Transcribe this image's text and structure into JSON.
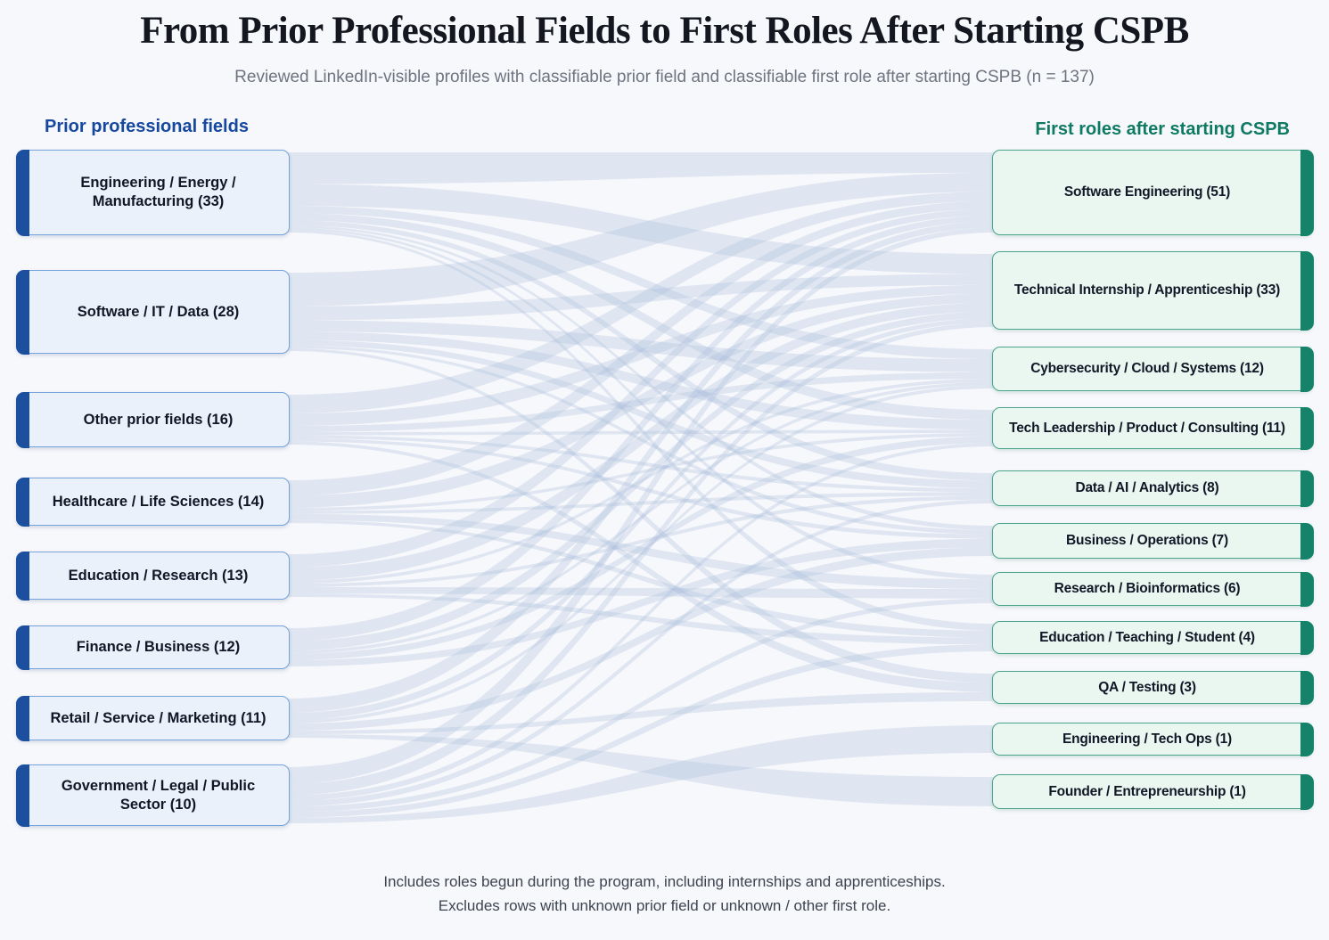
{
  "page": {
    "title": "From Prior Professional Fields to First Roles After Starting CSPB",
    "subtitle": "Reviewed LinkedIn-visible profiles with classifiable prior field and classifiable first role after starting CSPB (n = 137)"
  },
  "columns": {
    "left_header": "Prior professional fields",
    "right_header": "First roles after starting CSPB"
  },
  "footnote": {
    "line1": "Includes roles begun during the program, including internships and apprenticeships.",
    "line2": "Excludes rows with unknown prior field or unknown / other first role."
  },
  "chart_data": {
    "type": "sankey",
    "n_total": 137,
    "left_title": "Prior professional fields",
    "right_title": "First roles after starting CSPB",
    "colors": {
      "left_bar": "#1c4f9e",
      "left_fill": "#eaf1fb",
      "left_border": "#76a3da",
      "left_header_text": "#15489e",
      "right_bar": "#15836a",
      "right_fill": "#eaf6f0",
      "right_border": "#4aa58b",
      "right_header_text": "#0f7a63",
      "flow": "#a9bdda",
      "background": "#f7f8fb"
    },
    "left_nodes": [
      {
        "id": "engineering-energy-manufacturing",
        "label": "Engineering / Energy / Manufacturing",
        "value": 33,
        "display": "Engineering / Energy / Manufacturing (33)"
      },
      {
        "id": "software-it-data",
        "label": "Software / IT / Data",
        "value": 28,
        "display": "Software / IT / Data (28)"
      },
      {
        "id": "other-prior-fields",
        "label": "Other prior fields",
        "value": 16,
        "display": "Other prior fields (16)"
      },
      {
        "id": "healthcare-life-sciences",
        "label": "Healthcare / Life Sciences",
        "value": 14,
        "display": "Healthcare / Life Sciences (14)"
      },
      {
        "id": "education-research",
        "label": "Education / Research",
        "value": 13,
        "display": "Education / Research (13)"
      },
      {
        "id": "finance-business",
        "label": "Finance / Business",
        "value": 12,
        "display": "Finance / Business (12)"
      },
      {
        "id": "retail-service-marketing",
        "label": "Retail / Service / Marketing",
        "value": 11,
        "display": "Retail / Service / Marketing (11)"
      },
      {
        "id": "government-legal-public-sector",
        "label": "Government / Legal / Public Sector",
        "value": 10,
        "display": "Government / Legal / Public Sector (10)"
      }
    ],
    "right_nodes": [
      {
        "id": "software-engineering",
        "label": "Software Engineering",
        "value": 51,
        "display": "Software Engineering (51)"
      },
      {
        "id": "technical-internship-apprenticeship",
        "label": "Technical Internship / Apprenticeship",
        "value": 33,
        "display": "Technical Internship / Apprenticeship (33)"
      },
      {
        "id": "cybersecurity-cloud-systems",
        "label": "Cybersecurity / Cloud / Systems",
        "value": 12,
        "display": "Cybersecurity / Cloud / Systems (12)"
      },
      {
        "id": "tech-leadership-product-consulting",
        "label": "Tech Leadership / Product / Consulting",
        "value": 11,
        "display": "Tech Leadership / Product / Consulting (11)"
      },
      {
        "id": "data-ai-analytics",
        "label": "Data / AI / Analytics",
        "value": 8,
        "display": "Data / AI / Analytics (8)"
      },
      {
        "id": "business-operations",
        "label": "Business / Operations",
        "value": 7,
        "display": "Business / Operations (7)"
      },
      {
        "id": "research-bioinformatics",
        "label": "Research / Bioinformatics",
        "value": 6,
        "display": "Research / Bioinformatics (6)"
      },
      {
        "id": "education-teaching-student",
        "label": "Education / Teaching / Student",
        "value": 4,
        "display": "Education / Teaching / Student (4)"
      },
      {
        "id": "qa-testing",
        "label": "QA / Testing",
        "value": 3,
        "display": "QA / Testing (3)"
      },
      {
        "id": "engineering-tech-ops",
        "label": "Engineering / Tech Ops",
        "value": 1,
        "display": "Engineering / Tech Ops (1)"
      },
      {
        "id": "founder-entrepreneurship",
        "label": "Founder / Entrepreneurship",
        "value": 1,
        "display": "Founder / Entrepreneurship (1)"
      }
    ],
    "links": [
      {
        "s": 0,
        "t": 0,
        "v": 13
      },
      {
        "s": 0,
        "t": 1,
        "v": 9
      },
      {
        "s": 0,
        "t": 2,
        "v": 3
      },
      {
        "s": 0,
        "t": 3,
        "v": 3
      },
      {
        "s": 0,
        "t": 4,
        "v": 2
      },
      {
        "s": 0,
        "t": 5,
        "v": 1
      },
      {
        "s": 0,
        "t": 6,
        "v": 1
      },
      {
        "s": 0,
        "t": 7,
        "v": 1
      },
      {
        "s": 1,
        "t": 0,
        "v": 12
      },
      {
        "s": 1,
        "t": 1,
        "v": 5
      },
      {
        "s": 1,
        "t": 2,
        "v": 4
      },
      {
        "s": 1,
        "t": 3,
        "v": 3
      },
      {
        "s": 1,
        "t": 4,
        "v": 2
      },
      {
        "s": 1,
        "t": 5,
        "v": 1
      },
      {
        "s": 1,
        "t": 8,
        "v": 1
      },
      {
        "s": 2,
        "t": 0,
        "v": 6
      },
      {
        "s": 2,
        "t": 1,
        "v": 4
      },
      {
        "s": 2,
        "t": 2,
        "v": 2
      },
      {
        "s": 2,
        "t": 3,
        "v": 1
      },
      {
        "s": 2,
        "t": 4,
        "v": 1
      },
      {
        "s": 2,
        "t": 5,
        "v": 1
      },
      {
        "s": 2,
        "t": 8,
        "v": 1
      },
      {
        "s": 3,
        "t": 0,
        "v": 5
      },
      {
        "s": 3,
        "t": 1,
        "v": 4
      },
      {
        "s": 3,
        "t": 3,
        "v": 1
      },
      {
        "s": 3,
        "t": 4,
        "v": 1
      },
      {
        "s": 3,
        "t": 6,
        "v": 2
      },
      {
        "s": 3,
        "t": 7,
        "v": 1
      },
      {
        "s": 4,
        "t": 0,
        "v": 4
      },
      {
        "s": 4,
        "t": 1,
        "v": 4
      },
      {
        "s": 4,
        "t": 2,
        "v": 1
      },
      {
        "s": 4,
        "t": 4,
        "v": 1
      },
      {
        "s": 4,
        "t": 6,
        "v": 2
      },
      {
        "s": 4,
        "t": 7,
        "v": 1
      },
      {
        "s": 5,
        "t": 0,
        "v": 4
      },
      {
        "s": 5,
        "t": 1,
        "v": 3
      },
      {
        "s": 5,
        "t": 2,
        "v": 1
      },
      {
        "s": 5,
        "t": 3,
        "v": 2
      },
      {
        "s": 5,
        "t": 5,
        "v": 2
      },
      {
        "s": 6,
        "t": 0,
        "v": 4
      },
      {
        "s": 6,
        "t": 1,
        "v": 2
      },
      {
        "s": 6,
        "t": 2,
        "v": 1
      },
      {
        "s": 6,
        "t": 5,
        "v": 2
      },
      {
        "s": 6,
        "t": 8,
        "v": 1
      },
      {
        "s": 6,
        "t": 10,
        "v": 1
      },
      {
        "s": 7,
        "t": 0,
        "v": 3
      },
      {
        "s": 7,
        "t": 1,
        "v": 2
      },
      {
        "s": 7,
        "t": 3,
        "v": 1
      },
      {
        "s": 7,
        "t": 4,
        "v": 1
      },
      {
        "s": 7,
        "t": 6,
        "v": 1
      },
      {
        "s": 7,
        "t": 7,
        "v": 1
      },
      {
        "s": 7,
        "t": 9,
        "v": 1
      }
    ]
  }
}
